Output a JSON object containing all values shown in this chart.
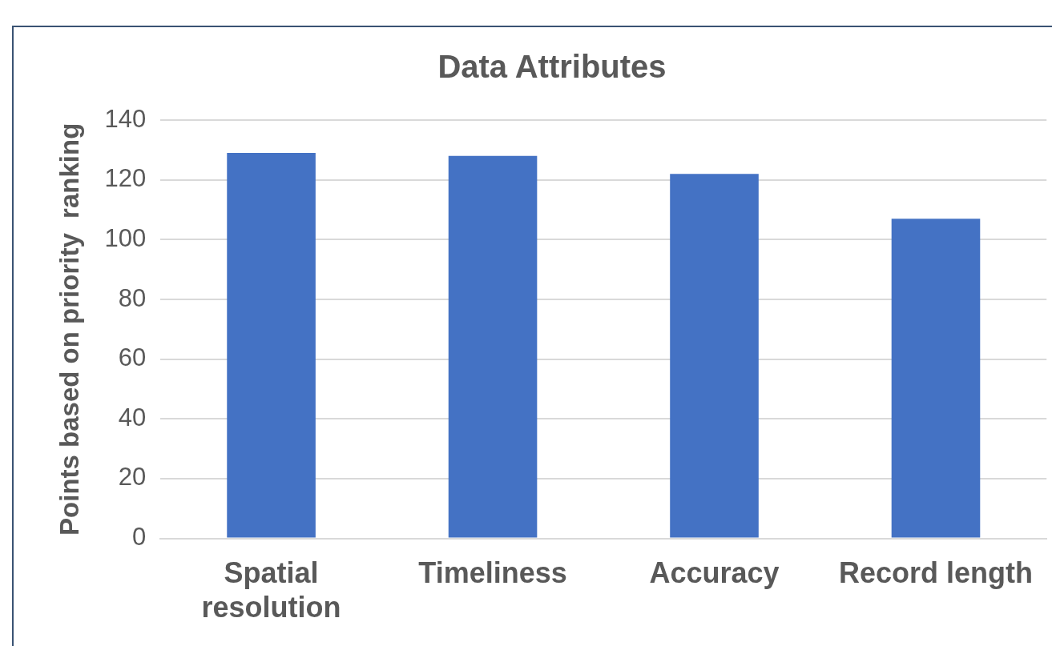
{
  "chart_data": {
    "type": "bar",
    "title": "Data Attributes",
    "ylabel": "Points based on priority  ranking",
    "categories": [
      "Spatial resolution",
      "Timeliness",
      "Accuracy",
      "Record length"
    ],
    "values": [
      129,
      128,
      122,
      107
    ],
    "color": "#4472c4",
    "ylim": [
      0,
      140
    ],
    "yticks": [
      0,
      20,
      40,
      60,
      80,
      100,
      120,
      140
    ],
    "grid": "y"
  }
}
